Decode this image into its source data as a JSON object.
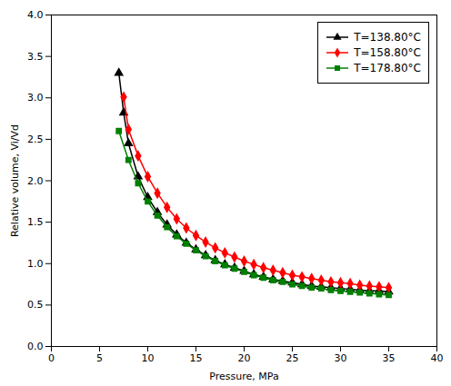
{
  "chart_data": {
    "type": "line",
    "xlabel": "Pressure, MPa",
    "ylabel": "Relative volume, Vi/Vd",
    "xlim": [
      0,
      40
    ],
    "ylim": [
      0.0,
      4.0
    ],
    "xticks": [
      0,
      5,
      10,
      15,
      20,
      25,
      30,
      35,
      40
    ],
    "yticks": [
      {
        "value": 0,
        "label": "0.0"
      },
      0.5,
      {
        "value": 1,
        "label": "1.0"
      },
      1.5,
      {
        "value": 2,
        "label": "2.0"
      },
      2.5,
      {
        "value": 3,
        "label": "3.0"
      },
      3.5,
      {
        "value": 4,
        "label": "4.0"
      }
    ],
    "grid": false,
    "legend": "upper right",
    "series": [
      {
        "name": "T=138.80°C",
        "color": "#000000",
        "marker": "triangle",
        "x": [
          7.0,
          7.5,
          8.0,
          9.0,
          10.0,
          11.0,
          12.0,
          13.0,
          14.0,
          15.0,
          16.0,
          17.0,
          18.0,
          19.0,
          20.0,
          21.0,
          22.0,
          23.0,
          24.0,
          25.0,
          26.0,
          27.0,
          28.0,
          29.0,
          30.0,
          31.0,
          32.0,
          33.0,
          34.0,
          35.0
        ],
        "values": [
          3.3,
          2.82,
          2.45,
          2.05,
          1.8,
          1.62,
          1.47,
          1.35,
          1.25,
          1.17,
          1.1,
          1.04,
          0.99,
          0.95,
          0.91,
          0.87,
          0.84,
          0.81,
          0.79,
          0.77,
          0.75,
          0.73,
          0.72,
          0.71,
          0.7,
          0.69,
          0.68,
          0.67,
          0.67,
          0.66
        ]
      },
      {
        "name": "T=158.80°C",
        "color": "#ff0000",
        "marker": "diamond",
        "x": [
          7.5,
          8.0,
          9.0,
          10.0,
          11.0,
          12.0,
          13.0,
          14.0,
          15.0,
          16.0,
          17.0,
          18.0,
          19.0,
          20.0,
          21.0,
          22.0,
          23.0,
          24.0,
          25.0,
          26.0,
          27.0,
          28.0,
          29.0,
          30.0,
          31.0,
          32.0,
          33.0,
          34.0,
          35.0
        ],
        "values": [
          3.01,
          2.62,
          2.3,
          2.05,
          1.85,
          1.68,
          1.54,
          1.43,
          1.34,
          1.26,
          1.19,
          1.13,
          1.08,
          1.03,
          0.99,
          0.95,
          0.92,
          0.89,
          0.86,
          0.84,
          0.82,
          0.8,
          0.78,
          0.77,
          0.76,
          0.74,
          0.73,
          0.72,
          0.71
        ]
      },
      {
        "name": "T=178.80°C",
        "color": "#008000",
        "marker": "square",
        "x": [
          7.0,
          8.0,
          9.0,
          10.0,
          11.0,
          12.0,
          13.0,
          14.0,
          15.0,
          16.0,
          17.0,
          18.0,
          19.0,
          20.0,
          21.0,
          22.0,
          23.0,
          24.0,
          25.0,
          26.0,
          27.0,
          28.0,
          29.0,
          30.0,
          31.0,
          32.0,
          33.0,
          34.0,
          35.0
        ],
        "values": [
          2.6,
          2.25,
          1.97,
          1.75,
          1.58,
          1.44,
          1.33,
          1.24,
          1.16,
          1.09,
          1.03,
          0.98,
          0.94,
          0.9,
          0.86,
          0.83,
          0.8,
          0.78,
          0.75,
          0.73,
          0.71,
          0.7,
          0.68,
          0.67,
          0.66,
          0.65,
          0.64,
          0.63,
          0.62
        ]
      }
    ]
  }
}
